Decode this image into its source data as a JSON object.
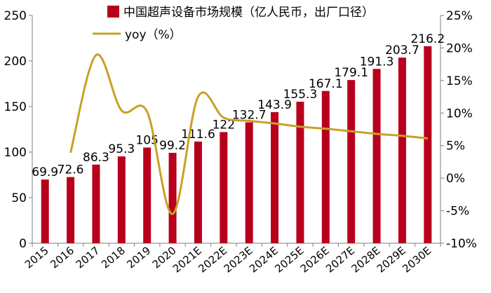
{
  "chart_data": {
    "type": "bar",
    "title": "",
    "categories": [
      "2015",
      "2016",
      "2017",
      "2018",
      "2019",
      "2020",
      "2021E",
      "2022E",
      "2023E",
      "2024E",
      "2025E",
      "2026E",
      "2027E",
      "2028E",
      "2029E",
      "2030E"
    ],
    "series": [
      {
        "name": "中国超声设备市场规模（亿人民币，出厂口径）",
        "type": "bar",
        "axis": "left",
        "color": "#b8001c",
        "values": [
          69.9,
          72.6,
          86.3,
          95.3,
          105,
          99.2,
          111.6,
          122,
          132.7,
          143.9,
          155.3,
          167.1,
          179.1,
          191.3,
          203.7,
          216.2
        ],
        "labels": [
          "69.9",
          "72.6",
          "86.3",
          "95.3",
          "105",
          "99.2",
          "111.6",
          "122",
          "132.7",
          "143.9",
          "155.3",
          "167.1",
          "179.1",
          "191.3",
          "203.7",
          "216.2"
        ]
      },
      {
        "name": "yoy（%）",
        "type": "line",
        "axis": "right",
        "color": "#c7a126",
        "values": [
          null,
          3.9,
          18.9,
          10.4,
          10.2,
          -5.5,
          12.5,
          9.3,
          8.8,
          8.4,
          7.9,
          7.6,
          7.2,
          6.8,
          6.5,
          6.1
        ]
      }
    ],
    "y_left": {
      "ylim": [
        0,
        250
      ],
      "ticks": [
        "0",
        "50",
        "100",
        "150",
        "200",
        "250"
      ]
    },
    "y_right": {
      "ylim": [
        -10,
        25
      ],
      "ticks": [
        "-10%",
        "-5%",
        "0%",
        "5%",
        "10%",
        "15%",
        "20%",
        "25%"
      ]
    },
    "legend_position": "top",
    "grid": false
  }
}
